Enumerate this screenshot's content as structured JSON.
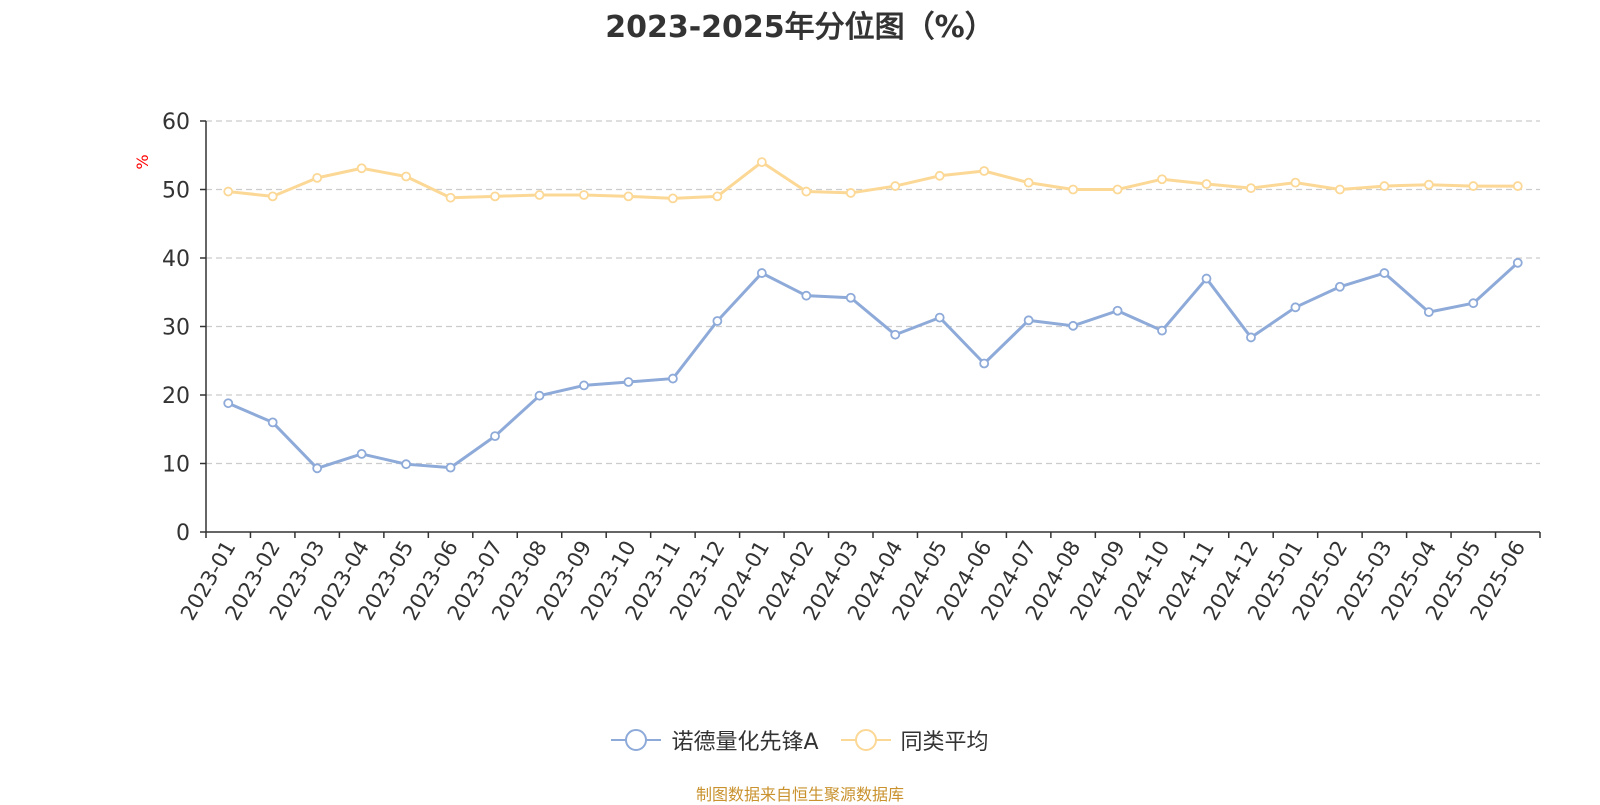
{
  "chart_data": {
    "type": "line",
    "title": "2023-2025年分位图（%）",
    "ylabel": "%",
    "ylim": [
      0,
      60
    ],
    "yticks": [
      0,
      10,
      20,
      30,
      40,
      50,
      60
    ],
    "grid": true,
    "legend_position": "bottom",
    "x": [
      "2023-01",
      "2023-02",
      "2023-03",
      "2023-04",
      "2023-05",
      "2023-06",
      "2023-07",
      "2023-08",
      "2023-09",
      "2023-10",
      "2023-11",
      "2023-12",
      "2024-01",
      "2024-02",
      "2024-03",
      "2024-04",
      "2024-05",
      "2024-06",
      "2024-07",
      "2024-08",
      "2024-09",
      "2024-10",
      "2024-11",
      "2024-12",
      "2025-01",
      "2025-02",
      "2025-03",
      "2025-04",
      "2025-05",
      "2025-06"
    ],
    "series": [
      {
        "name": "诺德量化先锋A",
        "color": "#8eaad9",
        "values": [
          18.8,
          16.0,
          9.3,
          11.4,
          9.9,
          9.4,
          14.0,
          19.9,
          21.4,
          21.9,
          22.4,
          30.8,
          37.8,
          34.5,
          34.2,
          28.8,
          31.3,
          24.6,
          30.9,
          30.1,
          32.3,
          29.4,
          37.0,
          28.4,
          32.8,
          35.8,
          37.8,
          32.1,
          33.4,
          39.3
        ]
      },
      {
        "name": "同类平均",
        "color": "#fcd896",
        "values": [
          49.7,
          49.0,
          51.7,
          53.1,
          51.9,
          48.8,
          49.0,
          49.2,
          49.2,
          49.0,
          48.7,
          49.0,
          54.0,
          49.7,
          49.5,
          50.5,
          52.0,
          52.7,
          51.0,
          50.0,
          50.0,
          51.5,
          50.8,
          50.2,
          51.0,
          50.0,
          50.5,
          50.7,
          50.5,
          50.5
        ]
      }
    ]
  },
  "footer": {
    "source": "制图数据来自恒生聚源数据库"
  }
}
